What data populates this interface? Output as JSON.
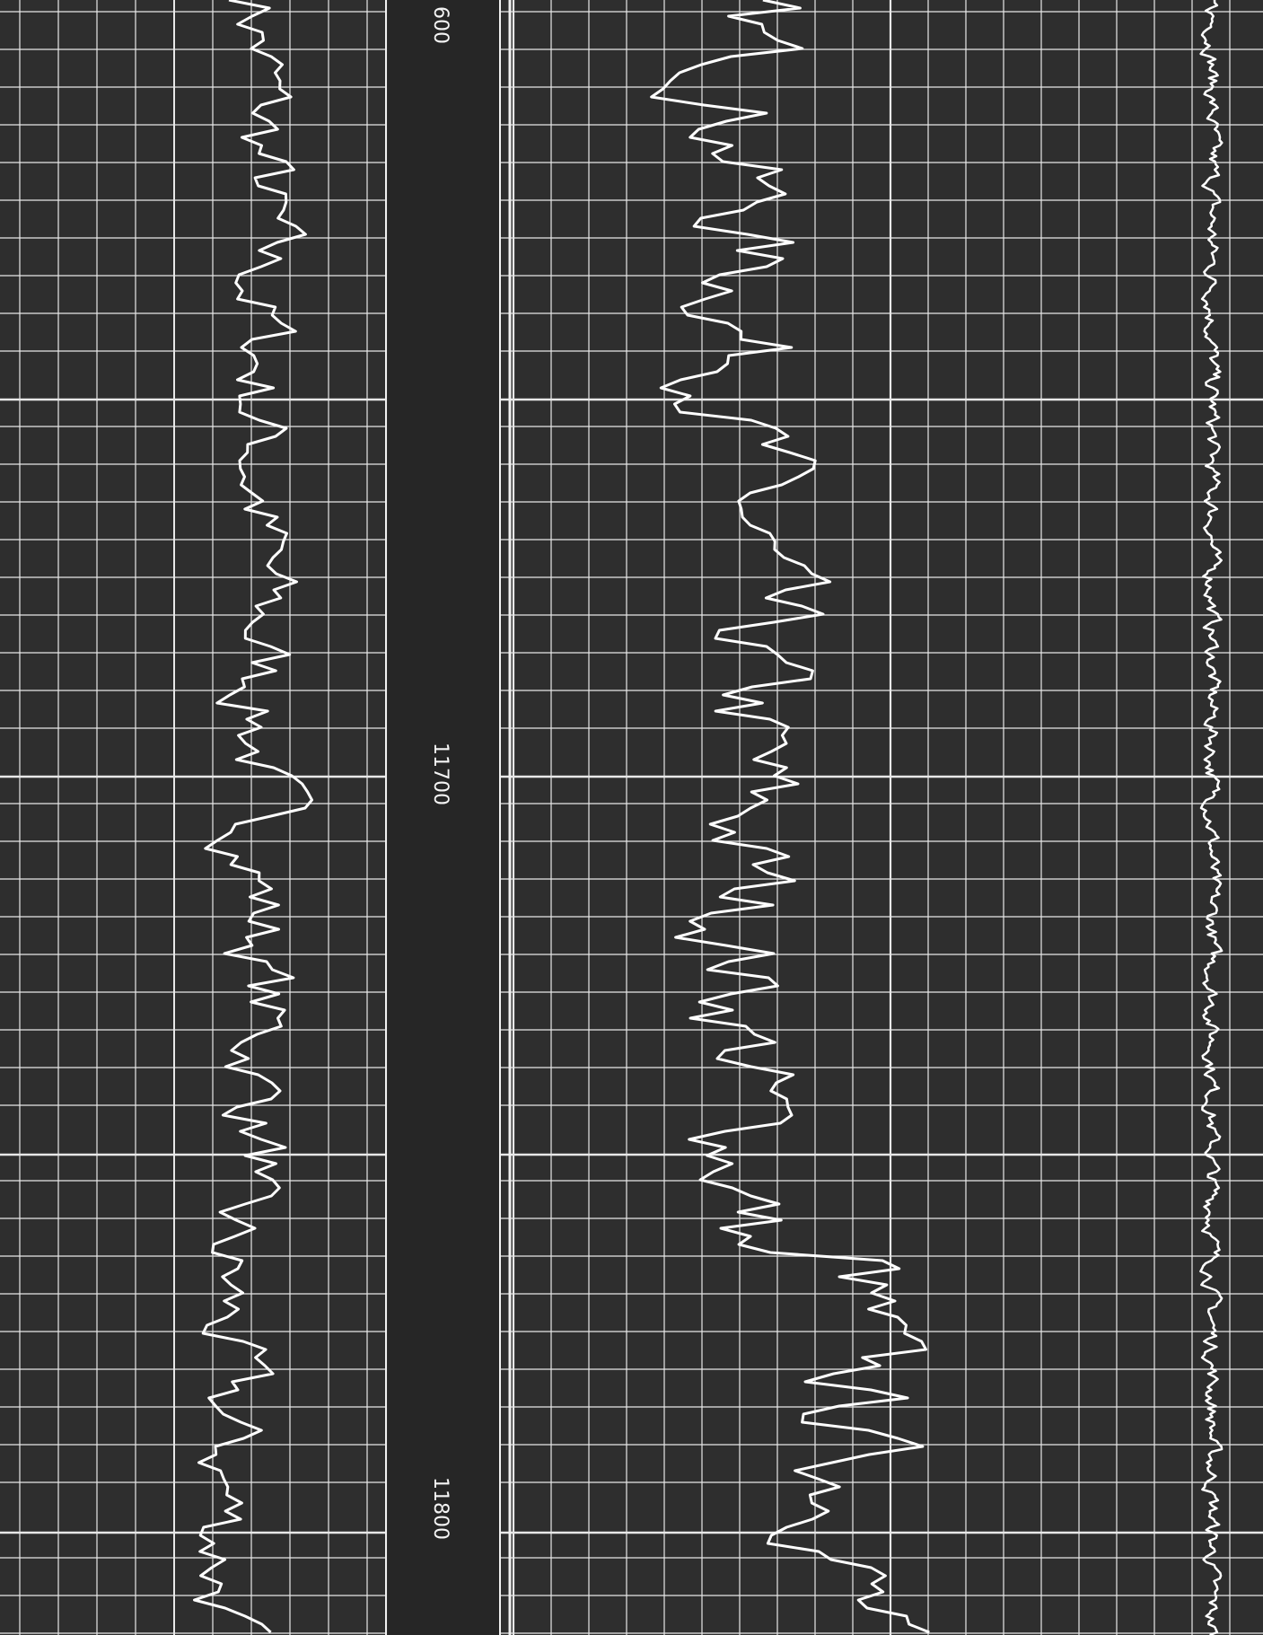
{
  "depth_labels": [
    "600",
    "11700",
    "11800"
  ]
}
